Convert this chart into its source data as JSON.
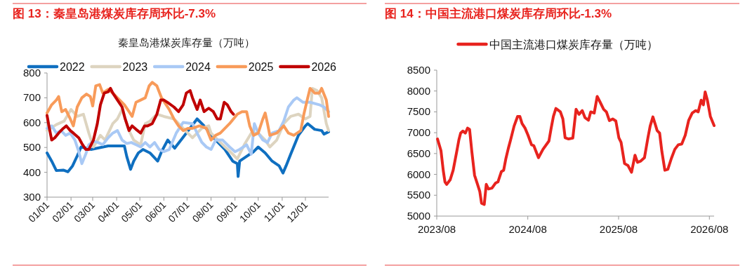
{
  "chart_data": [
    {
      "type": "line",
      "title": "图 13：秦皇岛港煤炭库存周环比-7.3%",
      "subtitle": "秦皇岛港煤炭库存量（万吨）",
      "legend": "top",
      "xlim": [
        "--01-01",
        "--12-31"
      ],
      "xticks": [
        {
          "value": "--01-01",
          "label": "01/01"
        },
        {
          "value": "--02-01",
          "label": "02/01"
        },
        {
          "value": "--03-01",
          "label": "03/01"
        },
        {
          "value": "--04-01",
          "label": "04/01"
        },
        {
          "value": "--05-01",
          "label": "05/01"
        },
        {
          "value": "--06-01",
          "label": "06/01"
        },
        {
          "value": "--07-01",
          "label": "07/01"
        },
        {
          "value": "--08-01",
          "label": "08/01"
        },
        {
          "value": "--09-01",
          "label": "09/01"
        },
        {
          "value": "--10-01",
          "label": "10/01"
        },
        {
          "value": "--11-01",
          "label": "11/01"
        },
        {
          "value": "--12-01",
          "label": "12/01"
        }
      ],
      "ylim": [
        300,
        800
      ],
      "yticks": [
        300,
        400,
        500,
        600,
        700,
        800
      ],
      "series": [
        {
          "name": "2022",
          "color": "#0f6fc0",
          "x": [
            "--01-01",
            "--01-07",
            "--01-13",
            "--01-22",
            "--01-28",
            "--02-03",
            "--02-09",
            "--02-14",
            "--02-27",
            "--03-21",
            "--04-11",
            "--04-14",
            "--04-19",
            "--04-23",
            "--04-29",
            "--05-05",
            "--05-14",
            "--05-24",
            "--05-29",
            "--06-06",
            "--06-15",
            "--06-30",
            "--07-14",
            "--07-23",
            "--08-07",
            "--08-19",
            "--08-29",
            "--09-04",
            "--09-05",
            "--09-07",
            "--09-16",
            "--09-25",
            "--10-01",
            "--10-10",
            "--10-19",
            "--10-28",
            "--11-02",
            "--11-06",
            "--11-12",
            "--11-22",
            "--12-01",
            "--12-04",
            "--12-13",
            "--12-22",
            "--12-25",
            "--12-31"
          ],
          "values": [
            478,
            445,
            407,
            409,
            402,
            426,
            466,
            502,
            492,
            506,
            506,
            464,
            412,
            445,
            478,
            492,
            478,
            445,
            483,
            530,
            497,
            558,
            615,
            587,
            530,
            492,
            445,
            435,
            383,
            445,
            464,
            483,
            502,
            478,
            445,
            426,
            397,
            426,
            473,
            549,
            587,
            596,
            573,
            568,
            554,
            563
          ]
        },
        {
          "name": "2023",
          "color": "#ddd4c0",
          "x": [
            "--01-01",
            "--01-13",
            "--01-23",
            "--02-01",
            "--02-09",
            "--02-17",
            "--02-24",
            "--03-02",
            "--03-11",
            "--03-17",
            "--03-27",
            "--04-02",
            "--04-08",
            "--04-11",
            "--04-17",
            "--04-23",
            "--05-02",
            "--05-08",
            "--05-14",
            "--05-23",
            "--06-01",
            "--06-14",
            "--06-17",
            "--06-26",
            "--07-08",
            "--07-20",
            "--07-29",
            "--08-01",
            "--08-07",
            "--08-19",
            "--08-29",
            "--09-04",
            "--09-13",
            "--09-22",
            "--10-01",
            "--10-10",
            "--10-16",
            "--10-25",
            "--11-03",
            "--11-12",
            "--11-22",
            "--12-01",
            "--12-07",
            "--12-10",
            "--12-16",
            "--12-22",
            "--12-28",
            "--12-31"
          ],
          "values": [
            568,
            592,
            606,
            653,
            625,
            634,
            558,
            502,
            549,
            530,
            596,
            615,
            653,
            625,
            568,
            530,
            511,
            596,
            606,
            634,
            625,
            615,
            606,
            577,
            539,
            577,
            587,
            558,
            539,
            502,
            473,
            454,
            511,
            558,
            558,
            530,
            502,
            530,
            596,
            625,
            634,
            615,
            625,
            738,
            729,
            700,
            596,
            568
          ]
        },
        {
          "name": "2024",
          "color": "#a9c9f5",
          "x": [
            "--01-01",
            "--01-07",
            "--01-13",
            "--01-19",
            "--01-25",
            "--01-31",
            "--02-06",
            "--02-11",
            "--02-15",
            "--02-20",
            "--02-24",
            "--03-02",
            "--03-08",
            "--03-14",
            "--03-21",
            "--03-27",
            "--04-02",
            "--04-08",
            "--04-14",
            "--04-20",
            "--04-26",
            "--05-02",
            "--05-08",
            "--05-14",
            "--05-20",
            "--05-26",
            "--06-01",
            "--06-08",
            "--06-17",
            "--06-26",
            "--07-08",
            "--07-14",
            "--07-20",
            "--07-26",
            "--08-01",
            "--08-07",
            "--08-16",
            "--08-25",
            "--09-01",
            "--09-07",
            "--09-16",
            "--09-22",
            "--09-26",
            "--10-01",
            "--10-07",
            "--10-13",
            "--10-19",
            "--10-28",
            "--11-03",
            "--11-09",
            "--11-16",
            "--11-20",
            "--11-28",
            "--12-07",
            "--12-19",
            "--12-25",
            "--12-31"
          ],
          "values": [
            577,
            587,
            558,
            568,
            549,
            558,
            530,
            483,
            435,
            473,
            511,
            525,
            520,
            511,
            539,
            558,
            568,
            530,
            516,
            520,
            511,
            502,
            520,
            502,
            520,
            492,
            483,
            492,
            558,
            601,
            596,
            558,
            521,
            502,
            492,
            530,
            530,
            502,
            483,
            492,
            511,
            473,
            596,
            558,
            530,
            520,
            558,
            568,
            606,
            663,
            691,
            700,
            682,
            682,
            672,
            663,
            644
          ]
        },
        {
          "name": "2025",
          "color": "#f89b5a",
          "x": [
            "--01-01",
            "--01-07",
            "--01-13",
            "--01-16",
            "--01-20",
            "--01-25",
            "--01-31",
            "--02-04",
            "--02-09",
            "--02-15",
            "--02-21",
            "--02-26",
            "--03-01",
            "--03-05",
            "--03-10",
            "--03-14",
            "--03-21",
            "--03-27",
            "--04-02",
            "--04-11",
            "--04-17",
            "--04-21",
            "--04-26",
            "--05-02",
            "--05-08",
            "--05-13",
            "--05-17",
            "--05-23",
            "--05-29",
            "--06-08",
            "--06-14",
            "--06-20",
            "--06-26",
            "--07-02",
            "--07-08",
            "--07-17",
            "--07-26",
            "--08-01",
            "--08-07",
            "--08-13",
            "--08-19",
            "--08-25",
            "--09-04",
            "--09-10",
            "--09-16",
            "--09-20",
            "--09-25",
            "--10-01",
            "--10-07",
            "--10-10",
            "--10-13",
            "--10-16",
            "--10-25",
            "--11-03",
            "--11-09",
            "--11-16",
            "--11-25",
            "--11-29",
            "--12-04",
            "--12-07",
            "--12-13",
            "--12-19",
            "--12-22",
            "--12-28",
            "--12-31"
          ],
          "values": [
            639,
            672,
            691,
            705,
            644,
            653,
            615,
            587,
            663,
            700,
            715,
            705,
            667,
            748,
            753,
            719,
            734,
            719,
            700,
            672,
            644,
            625,
            682,
            691,
            700,
            748,
            762,
            748,
            700,
            653,
            615,
            587,
            568,
            577,
            577,
            587,
            577,
            530,
            549,
            558,
            577,
            596,
            634,
            644,
            644,
            587,
            549,
            558,
            615,
            639,
            596,
            549,
            558,
            587,
            558,
            549,
            568,
            634,
            700,
            738,
            719,
            719,
            738,
            691,
            625
          ]
        },
        {
          "name": "2026",
          "color": "#c00000",
          "x": [
            "--01-01",
            "--01-04",
            "--01-07",
            "--01-11",
            "--01-16",
            "--01-22",
            "--01-26",
            "--01-31",
            "--02-04",
            "--02-11",
            "--02-15",
            "--02-20",
            "--02-24",
            "--03-02",
            "--03-07",
            "--03-11",
            "--03-16",
            "--03-21",
            "--03-24",
            "--03-27",
            "--04-02",
            "--04-08",
            "--04-12",
            "--04-17",
            "--04-21",
            "--04-26",
            "--05-02",
            "--05-07",
            "--05-11",
            "--05-17",
            "--05-23",
            "--05-28",
            "--06-01",
            "--06-06",
            "--06-14",
            "--06-20",
            "--06-26",
            "--06-30",
            "--07-05",
            "--07-08",
            "--07-14",
            "--07-18",
            "--07-23",
            "--07-29",
            "--08-04",
            "--08-09",
            "--08-13",
            "--08-18",
            "--08-22",
            "--08-27",
            "--08-30"
          ],
          "values": [
            629,
            577,
            530,
            539,
            558,
            577,
            587,
            568,
            558,
            539,
            516,
            492,
            492,
            530,
            596,
            672,
            719,
            724,
            738,
            719,
            691,
            663,
            615,
            568,
            587,
            573,
            558,
            587,
            587,
            596,
            634,
            691,
            691,
            681,
            663,
            644,
            672,
            719,
            729,
            700,
            653,
            691,
            644,
            658,
            644,
            615,
            615,
            682,
            672,
            644,
            634
          ]
        }
      ]
    },
    {
      "type": "line",
      "title": "图 14：中国主流港口煤炭库存周环比-1.3%",
      "legend": "top",
      "xlim": [
        "2023-08-01",
        "2026-08-20"
      ],
      "xticks": [
        {
          "value": "2023-08-01",
          "label": "2023/08"
        },
        {
          "value": "2024-08-01",
          "label": "2024/08"
        },
        {
          "value": "2025-08-01",
          "label": "2025/08"
        },
        {
          "value": "2026-08-01",
          "label": "2026/08"
        }
      ],
      "ylim": [
        5000,
        8500
      ],
      "yticks": [
        5000,
        5500,
        6000,
        6500,
        7000,
        7500,
        8000,
        8500
      ],
      "series": [
        {
          "name": "中国主流港口煤炭库存量（万吨）",
          "color": "#e8231e",
          "x": [
            "2023-08-04",
            "2023-08-18",
            "2023-08-27",
            "2023-09-03",
            "2023-09-10",
            "2023-09-24",
            "2023-10-06",
            "2023-10-13",
            "2023-10-22",
            "2023-10-29",
            "2023-11-05",
            "2023-11-14",
            "2023-11-24",
            "2023-12-03",
            "2023-12-11",
            "2023-12-20",
            "2023-12-31",
            "2024-01-12",
            "2024-01-21",
            "2024-01-28",
            "2024-02-08",
            "2024-02-16",
            "2024-02-25",
            "2024-03-10",
            "2024-03-24",
            "2024-04-03",
            "2024-04-17",
            "2024-04-26",
            "2024-05-05",
            "2024-05-15",
            "2024-05-24",
            "2024-06-07",
            "2024-06-21",
            "2024-06-30",
            "2024-07-09",
            "2024-07-21",
            "2024-08-02",
            "2024-08-16",
            "2024-08-25",
            "2024-09-13",
            "2024-10-01",
            "2024-10-25",
            "2024-11-03",
            "2024-11-12",
            "2024-11-22",
            "2024-12-10",
            "2024-12-20",
            "2024-12-29",
            "2025-01-12",
            "2025-01-29",
            "2025-02-11",
            "2025-02-23",
            "2025-03-08",
            "2025-03-19",
            "2025-04-02",
            "2025-04-11",
            "2025-04-25",
            "2025-05-07",
            "2025-05-19",
            "2025-06-02",
            "2025-06-13",
            "2025-06-25",
            "2025-07-09",
            "2025-07-21",
            "2025-08-02",
            "2025-08-11",
            "2025-08-25",
            "2025-09-08",
            "2025-09-22",
            "2025-10-06",
            "2025-10-16",
            "2025-10-29",
            "2025-11-13",
            "2025-11-27",
            "2025-12-06",
            "2025-12-17",
            "2025-12-27",
            "2026-01-03",
            "2026-01-13",
            "2026-01-22",
            "2026-02-03",
            "2026-02-15",
            "2026-03-01",
            "2026-03-15",
            "2026-03-29",
            "2026-04-12",
            "2026-04-26",
            "2026-05-10",
            "2026-05-24",
            "2026-06-07",
            "2026-06-17",
            "2026-06-29",
            "2026-07-08",
            "2026-07-15",
            "2026-07-24",
            "2026-08-05",
            "2026-08-20"
          ],
          "values": [
            6850,
            6570,
            6100,
            5820,
            5760,
            5870,
            6100,
            6320,
            6600,
            6830,
            6990,
            7040,
            6990,
            7110,
            7080,
            6550,
            5980,
            5760,
            5590,
            5310,
            5280,
            5760,
            5650,
            5670,
            5790,
            5820,
            6070,
            6100,
            6380,
            6630,
            6830,
            7160,
            7390,
            7390,
            7220,
            7110,
            6940,
            6710,
            6690,
            6400,
            6600,
            6800,
            7110,
            7390,
            7580,
            7500,
            7330,
            6880,
            6850,
            6870,
            7560,
            7440,
            7530,
            7360,
            7300,
            7500,
            7470,
            7870,
            7730,
            7560,
            7500,
            7290,
            7330,
            7280,
            6880,
            6770,
            6260,
            6210,
            6050,
            6460,
            6290,
            6320,
            6400,
            6880,
            7160,
            7380,
            7190,
            7050,
            6990,
            6550,
            6100,
            6120,
            6380,
            6600,
            6710,
            6730,
            6940,
            7300,
            7470,
            7530,
            7500,
            7780,
            7670,
            7980,
            7780,
            7390,
            7170
          ]
        }
      ]
    }
  ]
}
